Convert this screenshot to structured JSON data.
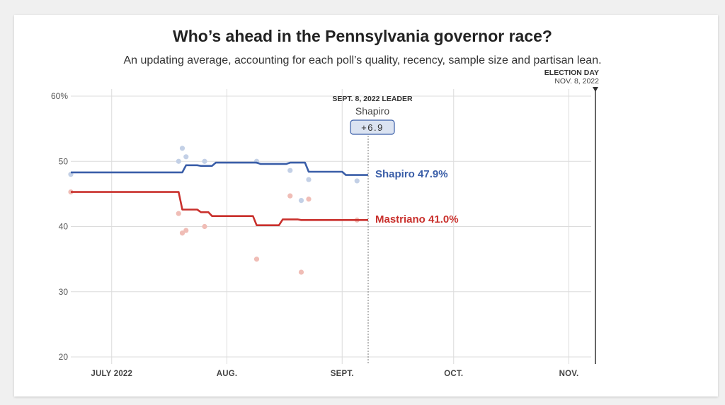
{
  "header": {
    "title": "Who’s ahead in the Pennsylvania governor race?",
    "subtitle": "An updating average, accounting for each poll’s quality, recency, sample size and partisan lean."
  },
  "annotations": {
    "election_day_label": "ELECTION DAY",
    "election_day_date": "NOV. 8, 2022",
    "leader_heading": "SEPT. 8, 2022 LEADER",
    "leader_name": "Shapiro",
    "leader_margin": "+6.9"
  },
  "colors": {
    "shapiro": "#3a5ea8",
    "mastriano": "#c9302c",
    "shapiro_poll": "#c3d0e6",
    "mastriano_poll": "#f0bdb6"
  },
  "chart_data": {
    "type": "line",
    "title": "Who’s ahead in the Pennsylvania governor race?",
    "subtitle": "An updating average, accounting for each poll’s quality, recency, sample size and partisan lean.",
    "ylim": [
      20,
      60
    ],
    "y_ticks": [
      20,
      30,
      40,
      50,
      60
    ],
    "y_tick_labels": [
      "20",
      "30",
      "40",
      "50",
      "60%"
    ],
    "x_ticks": [
      "2022-07-01",
      "2022-08-01",
      "2022-09-01",
      "2022-10-01",
      "2022-11-01"
    ],
    "x_tick_labels": [
      "JULY 2022",
      "AUG.",
      "SEPT.",
      "OCT.",
      "NOV."
    ],
    "xlim": [
      "2022-06-20",
      "2022-11-07"
    ],
    "grid": true,
    "series": [
      {
        "name": "Shapiro",
        "label": "Shapiro 47.9%",
        "color": "#3a5ea8",
        "points": [
          [
            "2022-06-20",
            48.3
          ],
          [
            "2022-07-20",
            48.3
          ],
          [
            "2022-07-21",
            49.4
          ],
          [
            "2022-07-24",
            49.4
          ],
          [
            "2022-07-25",
            49.3
          ],
          [
            "2022-07-28",
            49.3
          ],
          [
            "2022-07-29",
            49.8
          ],
          [
            "2022-08-09",
            49.8
          ],
          [
            "2022-08-10",
            49.6
          ],
          [
            "2022-08-17",
            49.6
          ],
          [
            "2022-08-18",
            49.8
          ],
          [
            "2022-08-22",
            49.8
          ],
          [
            "2022-08-23",
            48.4
          ],
          [
            "2022-09-01",
            48.4
          ],
          [
            "2022-09-02",
            47.9
          ],
          [
            "2022-09-08",
            47.9
          ]
        ]
      },
      {
        "name": "Mastriano",
        "label": "Mastriano 41.0%",
        "color": "#c9302c",
        "points": [
          [
            "2022-06-20",
            45.3
          ],
          [
            "2022-07-19",
            45.3
          ],
          [
            "2022-07-20",
            42.6
          ],
          [
            "2022-07-24",
            42.6
          ],
          [
            "2022-07-25",
            42.2
          ],
          [
            "2022-07-27",
            42.2
          ],
          [
            "2022-07-28",
            41.6
          ],
          [
            "2022-08-08",
            41.6
          ],
          [
            "2022-08-09",
            40.2
          ],
          [
            "2022-08-15",
            40.2
          ],
          [
            "2022-08-16",
            41.1
          ],
          [
            "2022-08-20",
            41.1
          ],
          [
            "2022-08-21",
            41.0
          ],
          [
            "2022-09-08",
            41.0
          ]
        ]
      }
    ],
    "polls": {
      "Shapiro": [
        [
          "2022-06-20",
          48
        ],
        [
          "2022-07-19",
          50
        ],
        [
          "2022-07-20",
          52
        ],
        [
          "2022-07-21",
          50.7
        ],
        [
          "2022-07-26",
          50
        ],
        [
          "2022-08-09",
          50
        ],
        [
          "2022-08-18",
          48.6
        ],
        [
          "2022-08-21",
          44
        ],
        [
          "2022-08-23",
          47.2
        ],
        [
          "2022-09-05",
          47
        ]
      ],
      "Mastriano": [
        [
          "2022-06-20",
          45.3
        ],
        [
          "2022-07-19",
          42
        ],
        [
          "2022-07-20",
          39
        ],
        [
          "2022-07-21",
          39.4
        ],
        [
          "2022-07-26",
          40
        ],
        [
          "2022-08-09",
          35
        ],
        [
          "2022-08-18",
          44.7
        ],
        [
          "2022-08-21",
          33
        ],
        [
          "2022-08-23",
          44.2
        ],
        [
          "2022-09-05",
          41
        ]
      ]
    },
    "current_date": "2022-09-08",
    "election_day": "2022-11-08"
  }
}
